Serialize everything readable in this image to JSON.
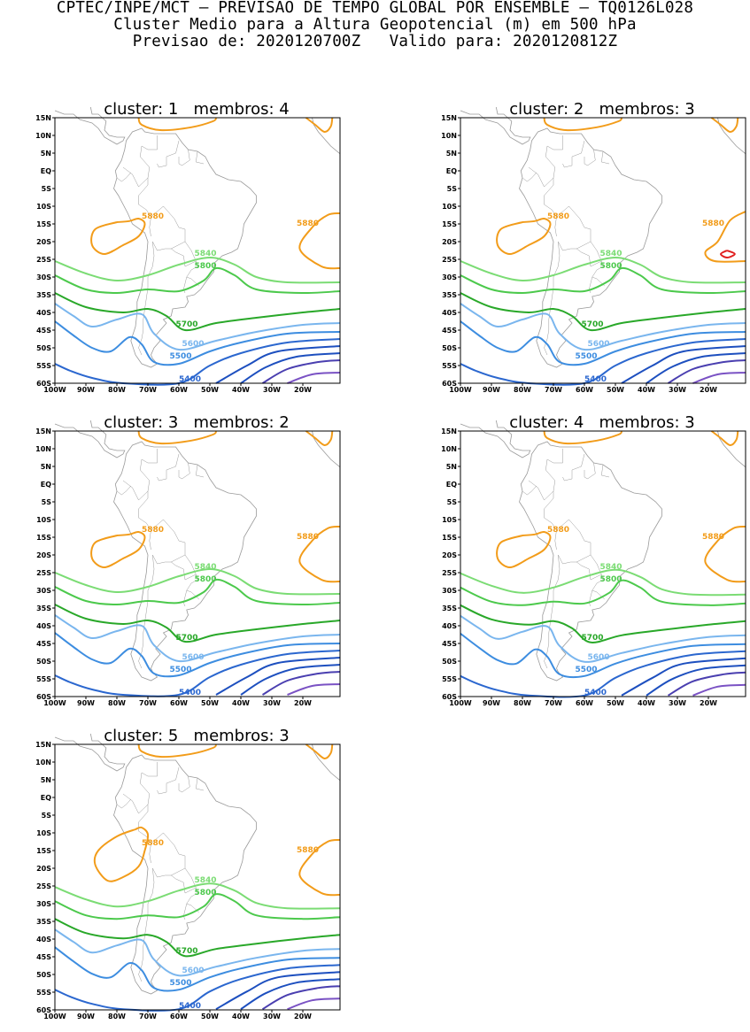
{
  "header": {
    "line1": "CPTEC/INPE/MCT – PREVISAO DE TEMPO GLOBAL POR ENSEMBLE – TQ0126L028",
    "line2": "Cluster Medio para a Altura Geopotencial (m) em 500 hPa",
    "line3": "Previsao de: 2020120700Z   Valido para: 2020120812Z"
  },
  "lat_ticks": [
    "15N",
    "10N",
    "5N",
    "EQ",
    "5S",
    "10S",
    "15S",
    "20S",
    "25S",
    "30S",
    "35S",
    "40S",
    "45S",
    "50S",
    "55S",
    "60S"
  ],
  "lon_ticks": [
    "100W",
    "90W",
    "80W",
    "70W",
    "60W",
    "50W",
    "40W",
    "30W",
    "20W"
  ],
  "panels": [
    {
      "title": "cluster: 1   membros: 4"
    },
    {
      "title": "cluster: 2   membros: 3"
    },
    {
      "title": "cluster: 3   membros: 2"
    },
    {
      "title": "cluster: 4   membros: 3"
    },
    {
      "title": "cluster: 5   membros: 3"
    }
  ],
  "contour_labels": [
    "5880",
    "5840",
    "5800",
    "5700",
    "5600",
    "5500",
    "5400"
  ],
  "colors": {
    "c5880": "#f29c1a",
    "c5840": "#7bdc74",
    "c5800": "#4cc94c",
    "c5700": "#29a829",
    "c5600": "#7ab6ee",
    "c5500": "#3d8de0",
    "c5400": "#2b67cf",
    "c5300": "#1d4fbf",
    "c5200": "#4a3fb0",
    "c5100": "#7a52c4",
    "c5920": "#e01f1f",
    "coast": "#9a9a9a"
  }
}
